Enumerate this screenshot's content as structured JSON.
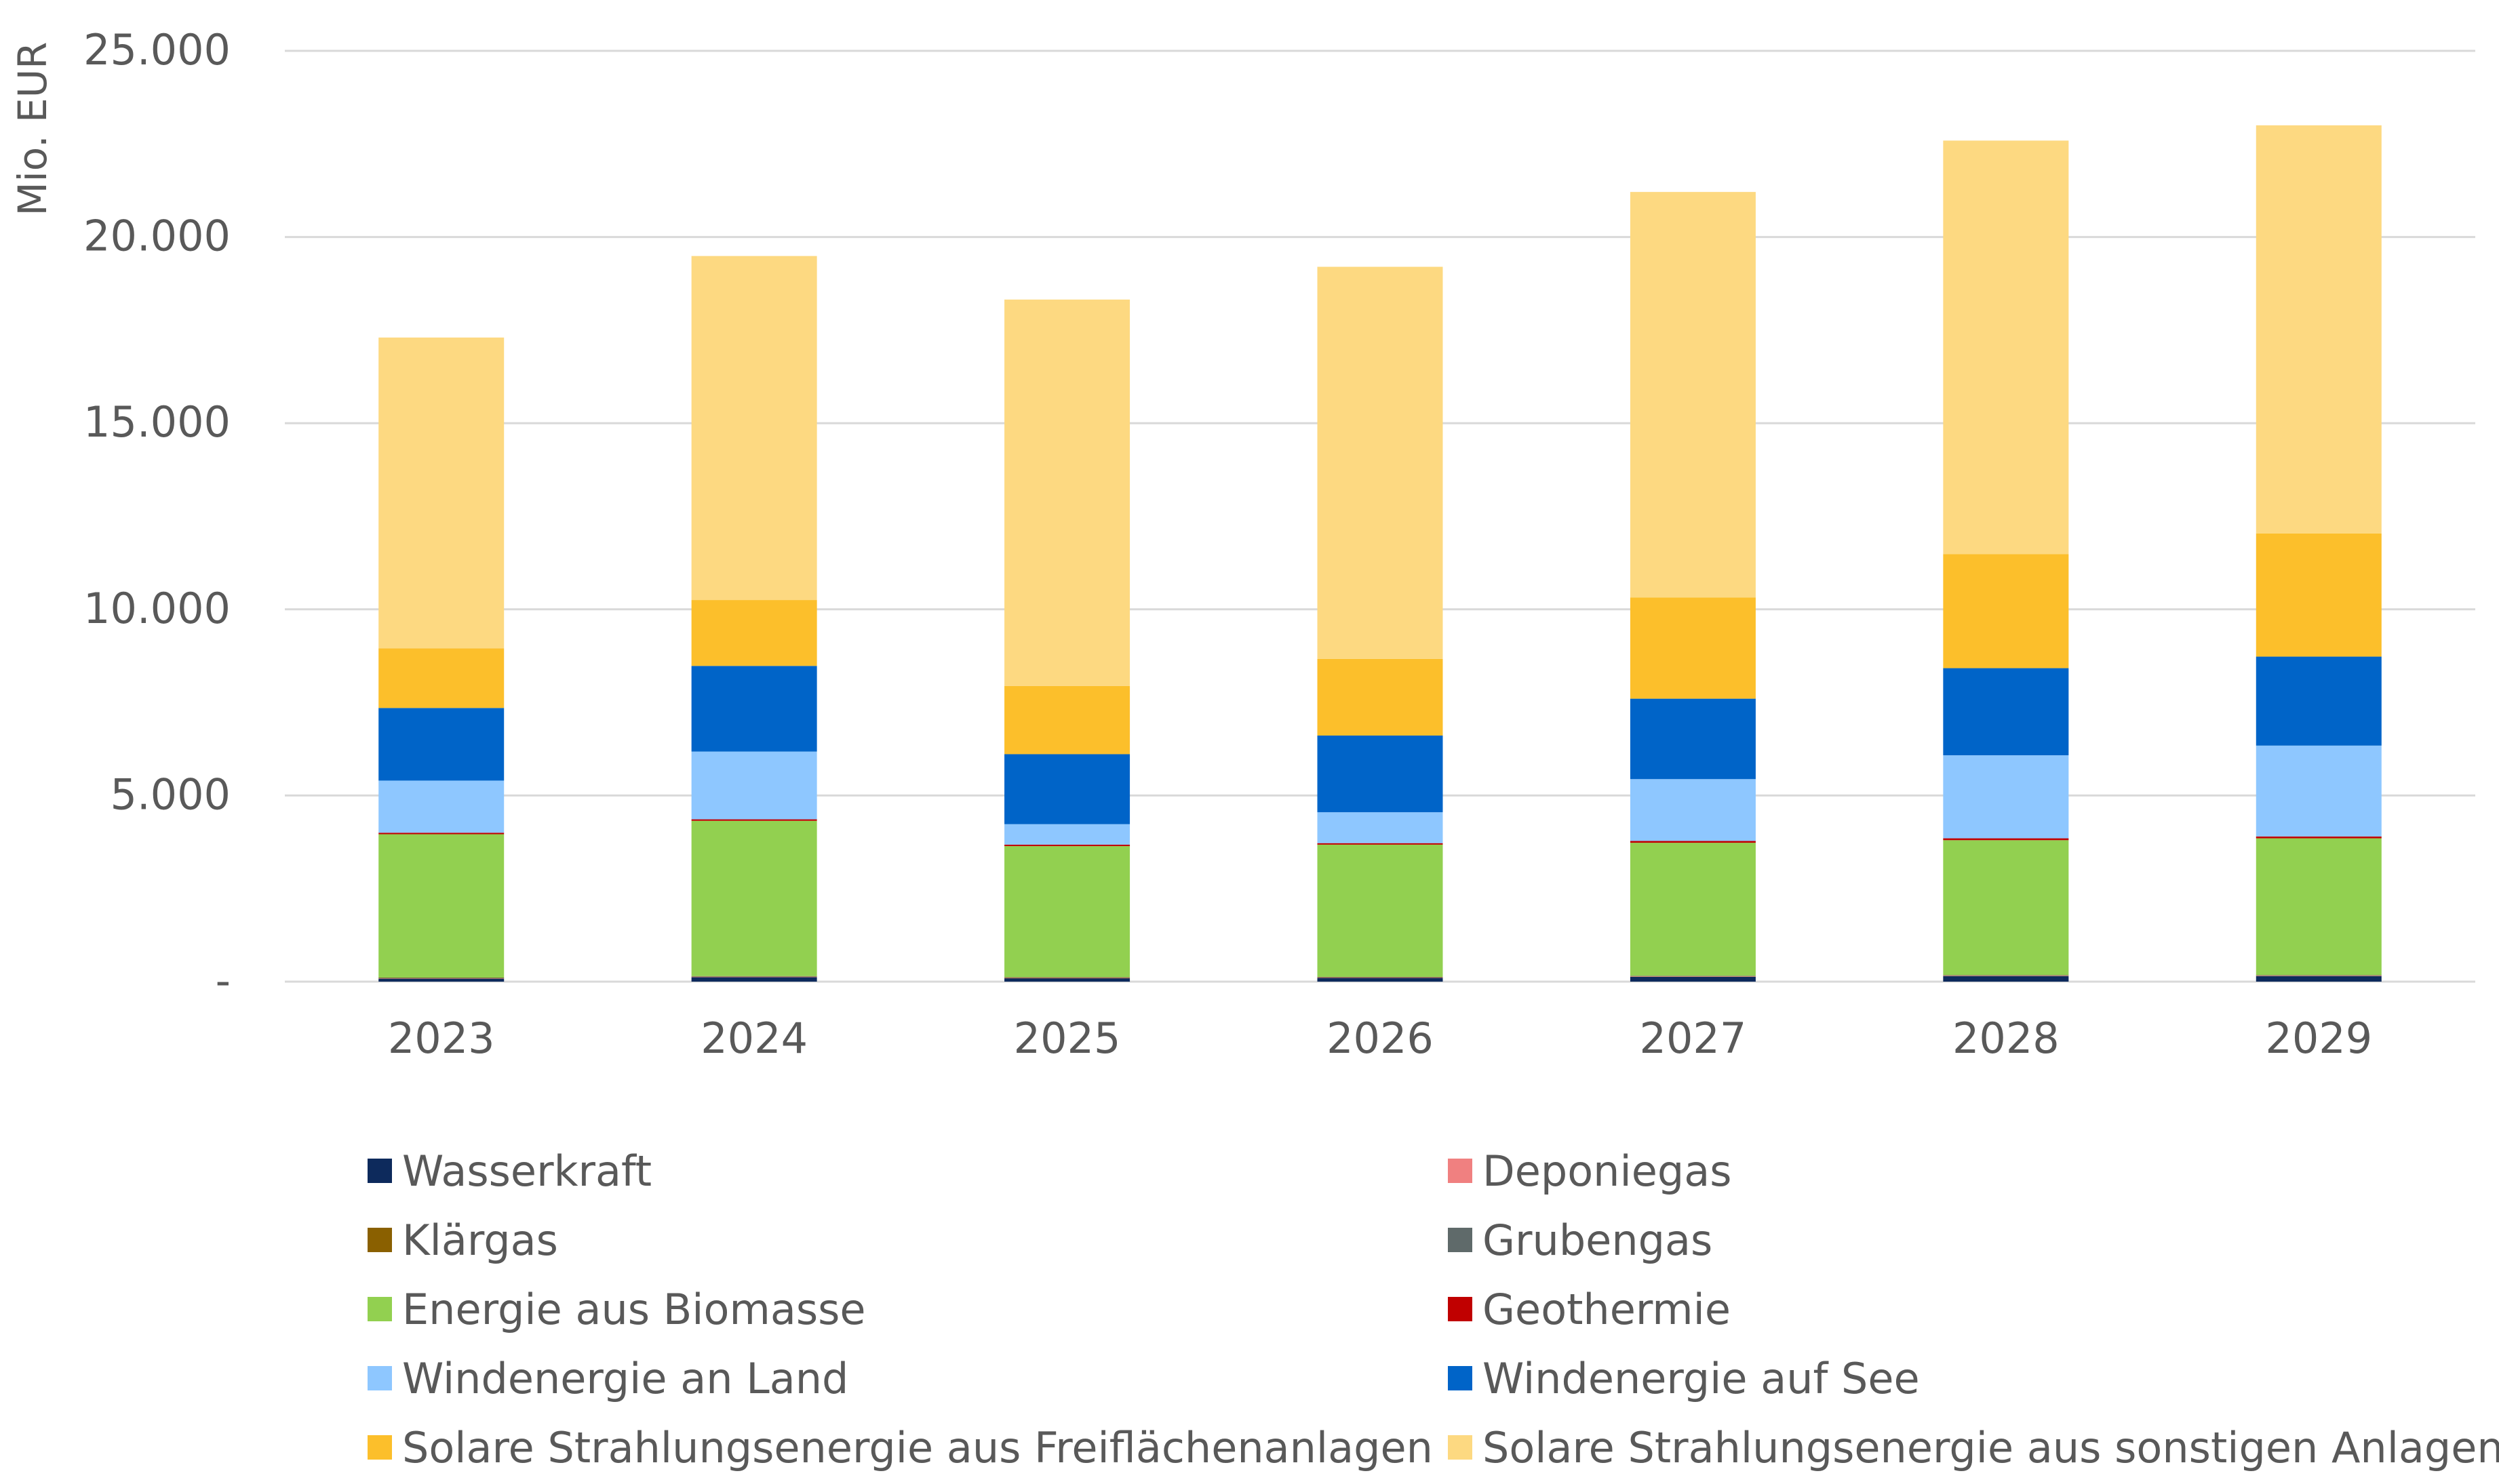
{
  "chart_data": {
    "type": "bar",
    "stacked": true,
    "ylabel": "Mio. EUR",
    "xlabel": "",
    "ylim": [
      0,
      25000
    ],
    "yticks": [
      0,
      5000,
      10000,
      15000,
      20000,
      25000
    ],
    "ytick_labels": [
      "-",
      "5.000",
      "10.000",
      "15.000",
      "20.000",
      "25.000"
    ],
    "grid": true,
    "legend_position": "bottom",
    "categories": [
      "2023",
      "2024",
      "2025",
      "2026",
      "2027",
      "2028",
      "2029"
    ],
    "series": [
      {
        "name": "Wasserkraft",
        "color": "#0d2a5c",
        "values": [
          80,
          120,
          90,
          100,
          130,
          150,
          150
        ]
      },
      {
        "name": "Deponiegas",
        "color": "#f08080",
        "values": [
          10,
          10,
          10,
          10,
          10,
          10,
          10
        ]
      },
      {
        "name": "Klärgas",
        "color": "#8a6000",
        "values": [
          10,
          10,
          10,
          10,
          10,
          10,
          10
        ]
      },
      {
        "name": "Grubengas",
        "color": "#5f6a6a",
        "values": [
          10,
          10,
          10,
          10,
          10,
          10,
          10
        ]
      },
      {
        "name": "Energie aus Biomasse",
        "color": "#92d050",
        "values": [
          3850,
          4170,
          3520,
          3550,
          3570,
          3620,
          3670
        ]
      },
      {
        "name": "Geothermie",
        "color": "#c00000",
        "values": [
          40,
          40,
          40,
          40,
          50,
          50,
          50
        ]
      },
      {
        "name": "Windenergie an Land",
        "color": "#8ec7ff",
        "values": [
          1400,
          1820,
          550,
          830,
          1660,
          2230,
          2440
        ]
      },
      {
        "name": "Windenergie auf See",
        "color": "#0064c8",
        "values": [
          1950,
          2300,
          1880,
          2060,
          2160,
          2340,
          2390
        ]
      },
      {
        "name": "Solare Strahlungsenergie aus Freiflächenanlagen",
        "color": "#fcbf2b",
        "values": [
          1600,
          1770,
          1830,
          2060,
          2720,
          3060,
          3310
        ]
      },
      {
        "name": "Solare Strahlungsenergie aus sonstigen Anlagen",
        "color": "#fdd981",
        "values": [
          8350,
          9240,
          10380,
          10530,
          10890,
          11110,
          10960
        ]
      }
    ]
  }
}
